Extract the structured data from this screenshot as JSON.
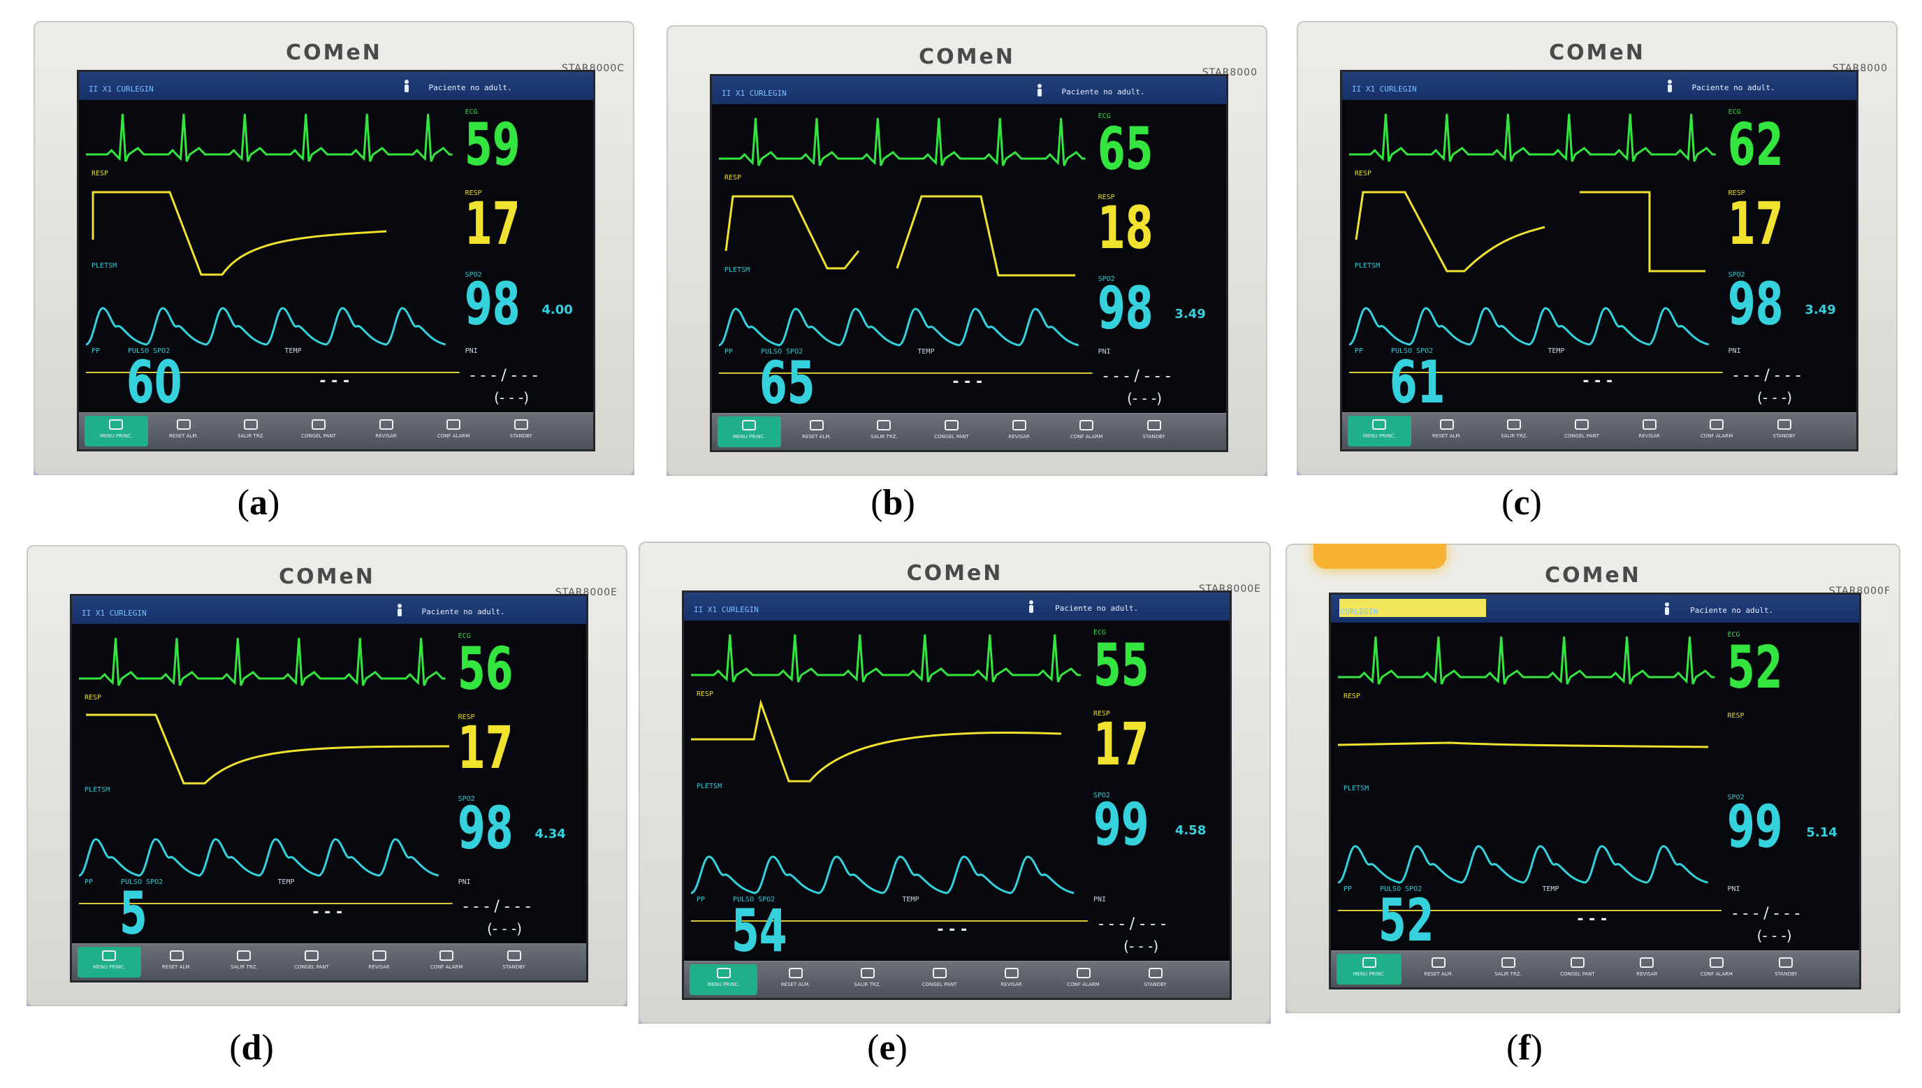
{
  "monitors": [
    {
      "id": "a",
      "caption": "a",
      "brand": "COMeN",
      "model": "STAR8000C",
      "lead_label": "II   X1   CURLEGIN",
      "patient": "Paciente no adult.",
      "hr": "59",
      "rr": "17",
      "spo2": "98",
      "pr": "60",
      "pi": "4.00",
      "alarm": false
    },
    {
      "id": "b",
      "caption": "b",
      "brand": "COMeN",
      "model": "STAR8000",
      "lead_label": "II   X1   CURLEGIN",
      "patient": "Paciente no adult.",
      "hr": "65",
      "rr": "18",
      "spo2": "98",
      "pr": "65",
      "pi": "3.49",
      "alarm": false
    },
    {
      "id": "c",
      "caption": "c",
      "brand": "COMeN",
      "model": "STAR8000",
      "lead_label": "II   X1   CURLEGIN",
      "patient": "Paciente no adult.",
      "hr": "62",
      "rr": "17",
      "spo2": "98",
      "pr": "61",
      "pi": "3.49",
      "alarm": false
    },
    {
      "id": "d",
      "caption": "d",
      "brand": "COMeN",
      "model": "STAR8000E",
      "lead_label": "II   X1   CURLEGIN",
      "patient": "Paciente no adult.",
      "hr": "56",
      "rr": "17",
      "spo2": "98",
      "pr": "5",
      "pi": "4.34",
      "alarm": false
    },
    {
      "id": "e",
      "caption": "e",
      "brand": "COMeN",
      "model": "STAR8000E",
      "lead_label": "II   X1   CURLEGIN",
      "patient": "Paciente no adult.",
      "hr": "55",
      "rr": "17",
      "spo2": "99",
      "pr": "54",
      "pi": "4.58",
      "alarm": false
    },
    {
      "id": "f",
      "caption": "f",
      "brand": "COMeN",
      "model": "STAR8000F",
      "lead_label": "CURLEGIN",
      "patient": "Paciente no adult.",
      "hr": "52",
      "rr": "",
      "spo2": "99",
      "pr": "52",
      "pi": "5.14",
      "alarm": true
    }
  ],
  "labels": {
    "hr": "ECG",
    "resp": "RESP",
    "pleth": "PLETSM",
    "pp": "PP",
    "spo2": "SPO2",
    "temp": "TEMP",
    "nibp": "PNI",
    "pulse_label": "PULSO SPO2",
    "temp_dash": "- - -",
    "nibp_dash": "- - -  / - - -",
    "nibp_mean": "(- - -)"
  },
  "bottom_buttons": [
    "MENU PRINC.",
    "RESET ALM.",
    "SALIR TRZ.",
    "CONGEL PANT",
    "REVISAR",
    "CONF ALARM",
    "STANDBY"
  ],
  "colors": {
    "ecg": "#35e53f",
    "resp": "#f1e22f",
    "spo2": "#35d2de"
  }
}
